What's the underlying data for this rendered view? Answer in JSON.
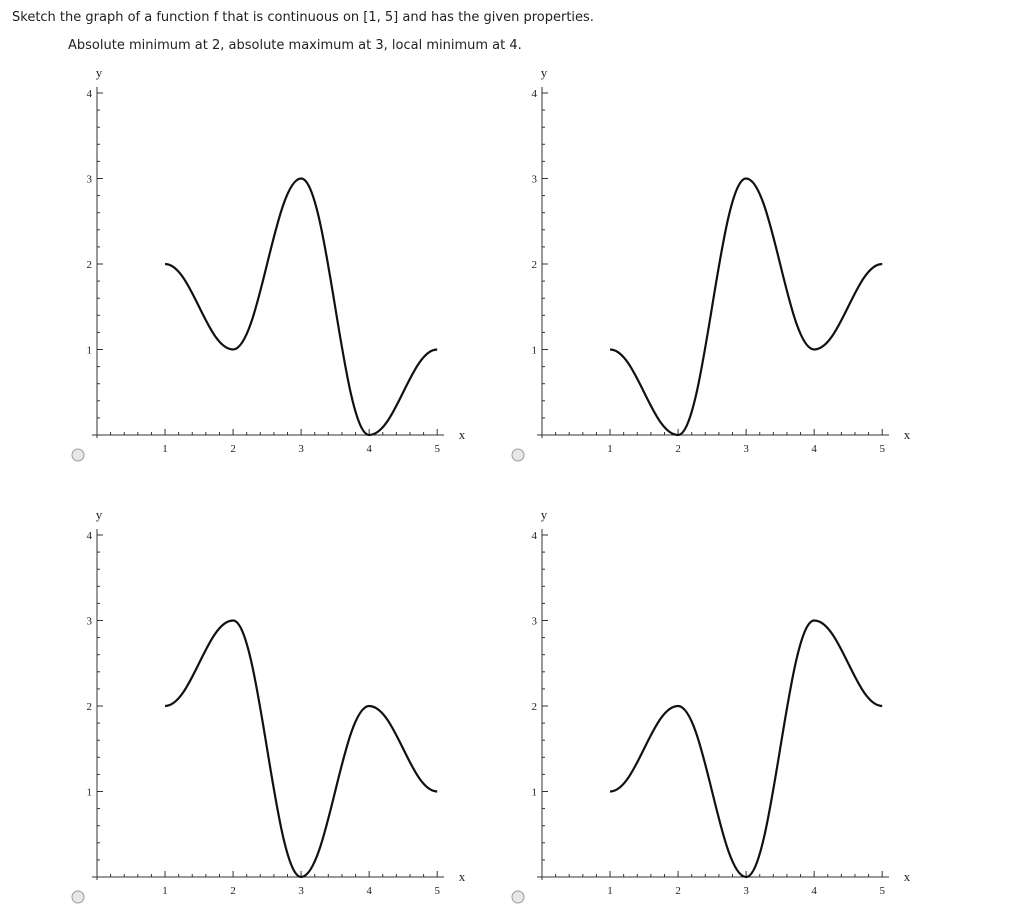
{
  "question": "Sketch the graph of a function f that is continuous on [1, 5] and has the given properties.",
  "instruction": "Absolute minimum at 2, absolute maximum at 3, local minimum at 4.",
  "chart_data": [
    {
      "type": "line",
      "x_label": "x",
      "y_label": "y",
      "x": [
        1,
        2,
        3,
        4,
        5
      ],
      "values": [
        2,
        1,
        3,
        0,
        1
      ],
      "color": "#111111",
      "xlim": [
        0,
        5.1
      ],
      "ylim": [
        0,
        4
      ],
      "xticks": [
        1,
        2,
        3,
        4,
        5
      ],
      "yticks": [
        1,
        2,
        3,
        4
      ]
    },
    {
      "type": "line",
      "x_label": "x",
      "y_label": "y",
      "x": [
        1,
        2,
        3,
        4,
        5
      ],
      "values": [
        1,
        0,
        3,
        1,
        2
      ],
      "color": "#111111",
      "xlim": [
        0,
        5.1
      ],
      "ylim": [
        0,
        4
      ],
      "xticks": [
        1,
        2,
        3,
        4,
        5
      ],
      "yticks": [
        1,
        2,
        3,
        4
      ]
    },
    {
      "type": "line",
      "x_label": "x",
      "y_label": "y",
      "x": [
        1,
        2,
        3,
        4,
        5
      ],
      "values": [
        2,
        3,
        0,
        2,
        1
      ],
      "color": "#111111",
      "xlim": [
        0,
        5.1
      ],
      "ylim": [
        0,
        4
      ],
      "xticks": [
        1,
        2,
        3,
        4,
        5
      ],
      "yticks": [
        1,
        2,
        3,
        4
      ]
    },
    {
      "type": "line",
      "x_label": "x",
      "y_label": "y",
      "x": [
        1,
        2,
        3,
        4,
        5
      ],
      "values": [
        1,
        2,
        0,
        3,
        2
      ],
      "color": "#111111",
      "xlim": [
        0,
        5.1
      ],
      "ylim": [
        0,
        4
      ],
      "xticks": [
        1,
        2,
        3,
        4,
        5
      ],
      "yticks": [
        1,
        2,
        3,
        4
      ]
    }
  ]
}
